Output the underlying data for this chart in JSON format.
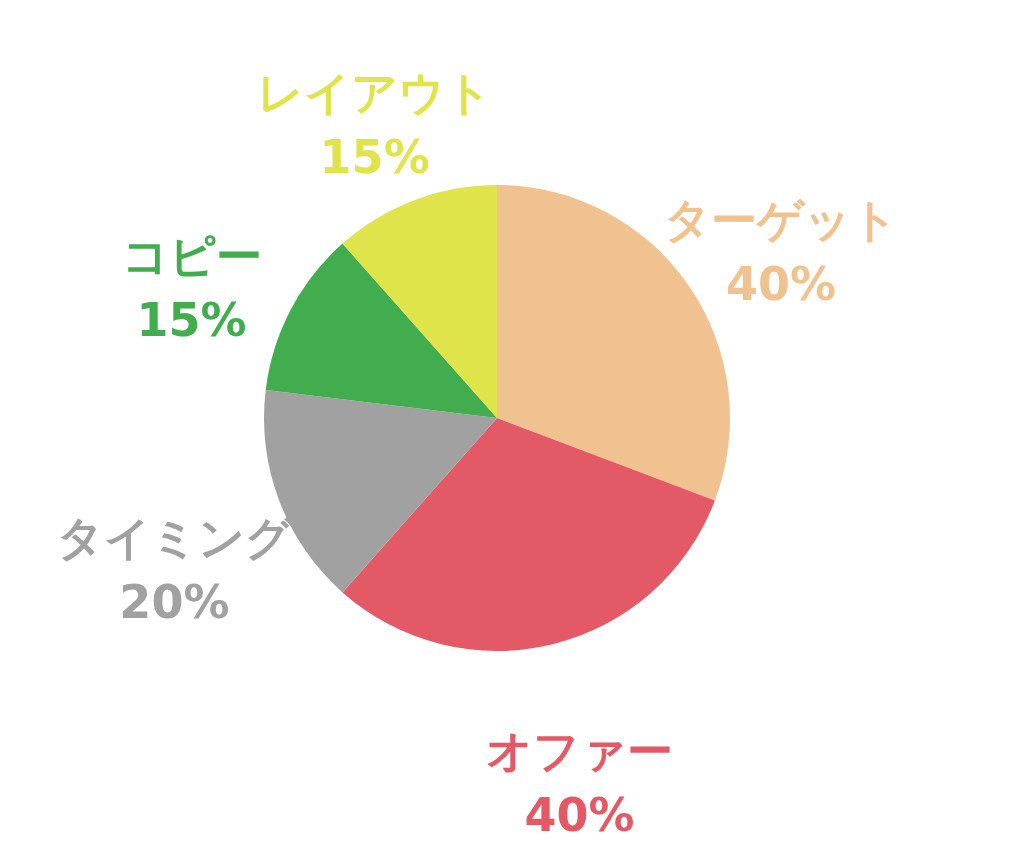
{
  "chart_data": {
    "type": "pie",
    "categories": [
      "ターゲット",
      "オファー",
      "タイミング",
      "コピー",
      "レイアウト"
    ],
    "values": [
      40,
      40,
      20,
      15,
      15
    ],
    "value_labels": [
      "40%",
      "40%",
      "20%",
      "15%",
      "15%"
    ],
    "colors": [
      "#efc28f",
      "#e35a66",
      "#a0a1a0",
      "#42ad4f",
      "#dfe44a"
    ]
  }
}
